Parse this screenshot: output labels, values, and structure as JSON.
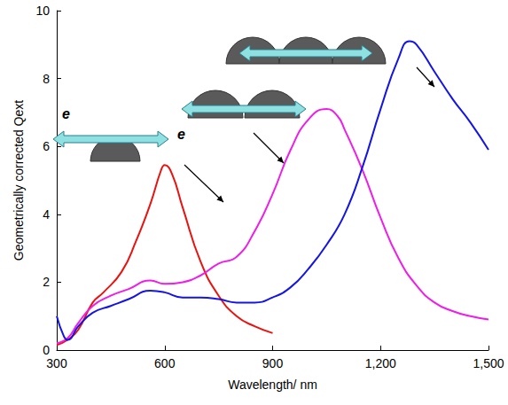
{
  "chart_data": {
    "type": "line",
    "x_label": "Wavelength/ nm",
    "y_label": "Geometrically corrected Qext",
    "annotations": [
      "e",
      "e"
    ],
    "xlim": [
      300,
      1500
    ],
    "xticks": [
      300,
      600,
      900,
      1200,
      1500
    ],
    "ylim": [
      0,
      10
    ],
    "yticks": [
      0,
      2,
      4,
      6,
      8,
      10
    ],
    "grid": false,
    "series": [
      {
        "color": "#e8130f",
        "x": [
          300,
          330,
          360,
          400,
          430,
          480,
          520,
          560,
          590,
          600,
          620,
          650,
          700,
          750,
          800,
          850,
          900
        ],
        "values": [
          0.15,
          0.3,
          0.6,
          1.4,
          1.7,
          2.3,
          3.2,
          4.3,
          5.3,
          5.45,
          5.2,
          4.2,
          2.6,
          1.6,
          1.0,
          0.7,
          0.5
        ]
      },
      {
        "color": "#ee1ee8",
        "x": [
          300,
          330,
          360,
          400,
          450,
          500,
          560,
          600,
          650,
          700,
          750,
          800,
          850,
          900,
          950,
          1000,
          1050,
          1080,
          1100,
          1150,
          1200,
          1250,
          1300,
          1350,
          1400,
          1450,
          1500
        ],
        "values": [
          0.2,
          0.35,
          0.8,
          1.3,
          1.6,
          1.8,
          2.05,
          1.95,
          2.0,
          2.2,
          2.55,
          2.75,
          3.5,
          4.6,
          5.9,
          6.8,
          7.1,
          6.9,
          6.5,
          5.3,
          3.9,
          2.7,
          1.9,
          1.4,
          1.15,
          1.0,
          0.9
        ]
      },
      {
        "color": "#1414e6",
        "x": [
          300,
          320,
          330,
          360,
          400,
          450,
          500,
          560,
          600,
          650,
          700,
          750,
          800,
          850,
          900,
          950,
          1000,
          1050,
          1100,
          1150,
          1200,
          1250,
          1280,
          1300,
          1350,
          1400,
          1450,
          1500
        ],
        "values": [
          1.0,
          0.4,
          0.3,
          0.7,
          1.1,
          1.3,
          1.5,
          1.75,
          1.7,
          1.55,
          1.55,
          1.5,
          1.4,
          1.4,
          1.55,
          1.85,
          2.4,
          3.1,
          4.0,
          5.4,
          7.1,
          8.6,
          9.1,
          9.0,
          8.2,
          7.4,
          6.7,
          5.9
        ]
      }
    ]
  }
}
